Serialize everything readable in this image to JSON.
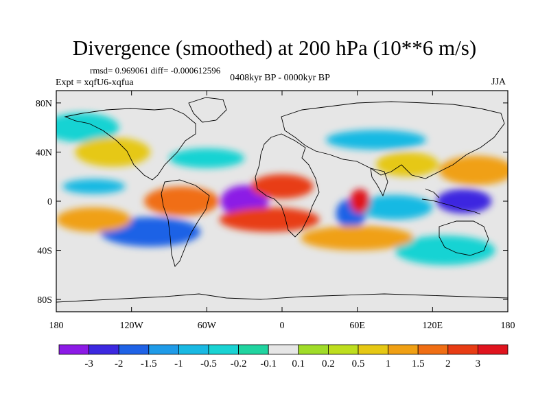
{
  "title": "Divergence (smoothed) at 200 hPa (10**6 m/s)",
  "stats_text": "rmsd= 0.969061 diff= -0.000612596",
  "experiment_text": "Expt = xqfU6-xqfua",
  "period_text": "0408kyr BP - 0000kyr BP",
  "season_text": "JJA",
  "map": {
    "lon_ticks": [
      {
        "lon": -180,
        "label": "180"
      },
      {
        "lon": -120,
        "label": "120W"
      },
      {
        "lon": -60,
        "label": "60W"
      },
      {
        "lon": 0,
        "label": "0"
      },
      {
        "lon": 60,
        "label": "60E"
      },
      {
        "lon": 120,
        "label": "120E"
      },
      {
        "lon": 180,
        "label": "180"
      }
    ],
    "lat_ticks": [
      {
        "lat": 80,
        "label": "80N"
      },
      {
        "lat": 40,
        "label": "40N"
      },
      {
        "lat": 0,
        "label": "0"
      },
      {
        "lat": -40,
        "label": "40S"
      },
      {
        "lat": -80,
        "label": "80S"
      }
    ],
    "lat_range": [
      -90,
      90
    ],
    "lon_range": [
      -180,
      180
    ]
  },
  "colorbar": {
    "boundary_labels": [
      "-3",
      "-2",
      "-1.5",
      "-1",
      "-0.5",
      "-0.2",
      "-0.1",
      "0.1",
      "0.2",
      "0.5",
      "1",
      "1.5",
      "2",
      "3"
    ],
    "colors": [
      "#8c1ae6",
      "#3c28e0",
      "#1f62e6",
      "#1f9be8",
      "#19b9e3",
      "#19d3d3",
      "#20d4a0",
      "#e6e6e6",
      "#a0dc28",
      "#bede1e",
      "#e6c814",
      "#f0a014",
      "#f06e14",
      "#e83c14",
      "#e0141e"
    ]
  },
  "fields": [
    {
      "lon": -30,
      "lat": 0,
      "rx": 19,
      "ry": 13,
      "value": -3.2
    },
    {
      "lon": 145,
      "lat": 0,
      "rx": 22,
      "ry": 10,
      "value": -2.2
    },
    {
      "lon": -105,
      "lat": -25,
      "rx": 40,
      "ry": 12,
      "value": -1.8
    },
    {
      "lon": 55,
      "lat": -10,
      "rx": 12,
      "ry": 12,
      "value": -1.6
    },
    {
      "lon": 75,
      "lat": 50,
      "rx": 40,
      "ry": 8,
      "value": -0.6
    },
    {
      "lon": -150,
      "lat": 12,
      "rx": 25,
      "ry": 6,
      "value": -0.7
    },
    {
      "lon": 90,
      "lat": -5,
      "rx": 30,
      "ry": 10,
      "value": -0.7
    },
    {
      "lon": -60,
      "lat": 35,
      "rx": 30,
      "ry": 8,
      "value": -0.5
    },
    {
      "lon": -160,
      "lat": 60,
      "rx": 30,
      "ry": 12,
      "value": -0.4
    },
    {
      "lon": 130,
      "lat": -40,
      "rx": 40,
      "ry": 12,
      "value": -0.4
    },
    {
      "lon": 0,
      "lat": 12,
      "rx": 25,
      "ry": 10,
      "value": 2.8
    },
    {
      "lon": 62,
      "lat": 0,
      "rx": 8,
      "ry": 10,
      "value": 3.2
    },
    {
      "lon": -10,
      "lat": -15,
      "rx": 40,
      "ry": 10,
      "value": 2.4
    },
    {
      "lon": -80,
      "lat": 0,
      "rx": 30,
      "ry": 12,
      "value": 1.6
    },
    {
      "lon": 155,
      "lat": 25,
      "rx": 30,
      "ry": 12,
      "value": 1.2
    },
    {
      "lon": -150,
      "lat": -15,
      "rx": 30,
      "ry": 10,
      "value": 1.3
    },
    {
      "lon": 60,
      "lat": -30,
      "rx": 45,
      "ry": 10,
      "value": 1.0
    },
    {
      "lon": -135,
      "lat": 40,
      "rx": 30,
      "ry": 12,
      "value": 0.8
    },
    {
      "lon": 100,
      "lat": 30,
      "rx": 25,
      "ry": 10,
      "value": 0.9
    }
  ]
}
